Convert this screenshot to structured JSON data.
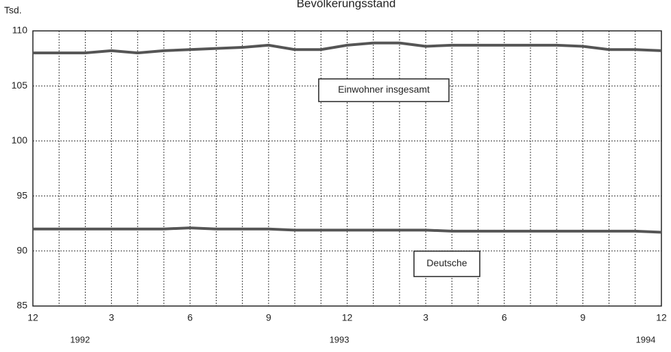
{
  "chart_data": {
    "type": "line",
    "title": "Bevölkerungsstand",
    "y_label": "Tsd.",
    "categories": [
      "12",
      null,
      null,
      "3",
      null,
      null,
      "6",
      null,
      null,
      "9",
      null,
      null,
      "12",
      null,
      null,
      "3",
      null,
      null,
      "6",
      null,
      null,
      "9",
      null,
      null,
      "12"
    ],
    "years": [
      "1992",
      "1993",
      "1994"
    ],
    "series": [
      {
        "name": "Einwohner insgesamt",
        "color": "#555555",
        "values": [
          108.0,
          108.0,
          108.0,
          108.2,
          108.0,
          108.2,
          108.3,
          108.4,
          108.5,
          108.7,
          108.3,
          108.3,
          108.7,
          108.9,
          108.9,
          108.6,
          108.7,
          108.7,
          108.7,
          108.7,
          108.7,
          108.6,
          108.3,
          108.3,
          108.2
        ]
      },
      {
        "name": "Deutsche",
        "color": "#555555",
        "values": [
          92.0,
          92.0,
          92.0,
          92.0,
          92.0,
          92.0,
          92.1,
          92.0,
          92.0,
          92.0,
          91.9,
          91.9,
          91.9,
          91.9,
          91.9,
          91.9,
          91.8,
          91.8,
          91.8,
          91.8,
          91.8,
          91.8,
          91.8,
          91.8,
          91.7
        ]
      }
    ],
    "ylim": [
      85,
      110
    ],
    "yticks": [
      85,
      90,
      95,
      100,
      105,
      110
    ],
    "grid": true
  }
}
